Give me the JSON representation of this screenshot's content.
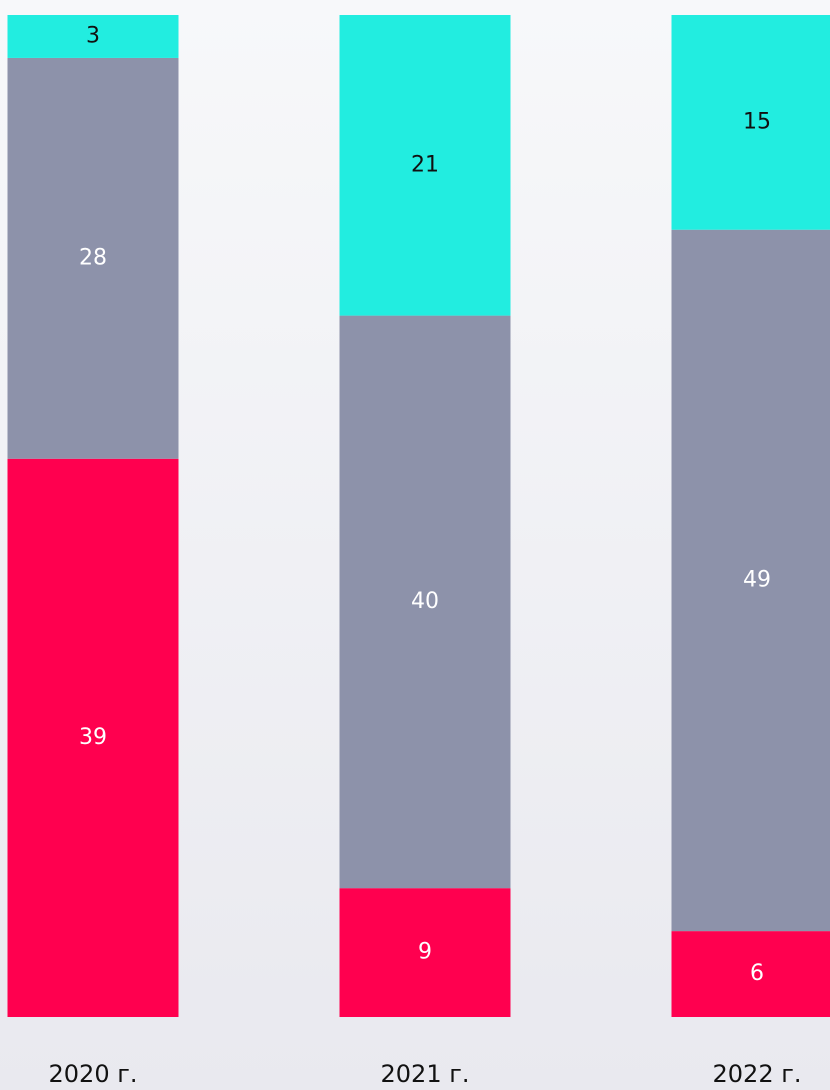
{
  "chart_data": {
    "type": "stacked_bar",
    "categories": [
      "2020 г.",
      "2021 г.",
      "2022 г."
    ],
    "series": [
      {
        "color": "#ff004f",
        "label_color": "#ffffff",
        "values": [
          39,
          9,
          6
        ]
      },
      {
        "color": "#8d92aa",
        "label_color": "#ffffff",
        "values": [
          28,
          40,
          49
        ]
      },
      {
        "color": "#22ede0",
        "label_color": "#111111",
        "values": [
          3,
          21,
          15
        ]
      }
    ],
    "ylim": [
      0,
      70
    ]
  }
}
